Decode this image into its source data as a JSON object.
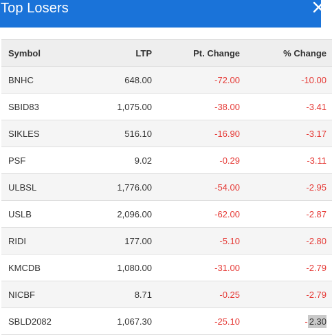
{
  "header": {
    "title": "Top Losers"
  },
  "table": {
    "columns": {
      "symbol": "Symbol",
      "ltp": "LTP",
      "pt_change": "Pt. Change",
      "pct_change": "% Change"
    },
    "rows": [
      {
        "symbol": "BNHC",
        "ltp": "648.00",
        "pt_change": "-72.00",
        "pct_change": "-10.00"
      },
      {
        "symbol": "SBID83",
        "ltp": "1,075.00",
        "pt_change": "-38.00",
        "pct_change": "-3.41"
      },
      {
        "symbol": "SIKLES",
        "ltp": "516.10",
        "pt_change": "-16.90",
        "pct_change": "-3.17"
      },
      {
        "symbol": "PSF",
        "ltp": "9.02",
        "pt_change": "-0.29",
        "pct_change": "-3.11"
      },
      {
        "symbol": "ULBSL",
        "ltp": "1,776.00",
        "pt_change": "-54.00",
        "pct_change": "-2.95"
      },
      {
        "symbol": "USLB",
        "ltp": "2,096.00",
        "pt_change": "-62.00",
        "pct_change": "-2.87"
      },
      {
        "symbol": "RIDI",
        "ltp": "177.00",
        "pt_change": "-5.10",
        "pct_change": "-2.80"
      },
      {
        "symbol": "KMCDB",
        "ltp": "1,080.00",
        "pt_change": "-31.00",
        "pct_change": "-2.79"
      },
      {
        "symbol": "NICBF",
        "ltp": "8.71",
        "pt_change": "-0.25",
        "pct_change": "-2.79"
      },
      {
        "symbol": "SBLD2082",
        "ltp": "1,067.30",
        "pt_change": "-25.10",
        "pct_change_sign": "-",
        "pct_change_selected": "2.30"
      }
    ]
  },
  "colors": {
    "header_bg": "#1a73d9",
    "negative": "#e53935",
    "selection": "#c9c9c9"
  },
  "icons": {
    "close": "close-icon"
  }
}
